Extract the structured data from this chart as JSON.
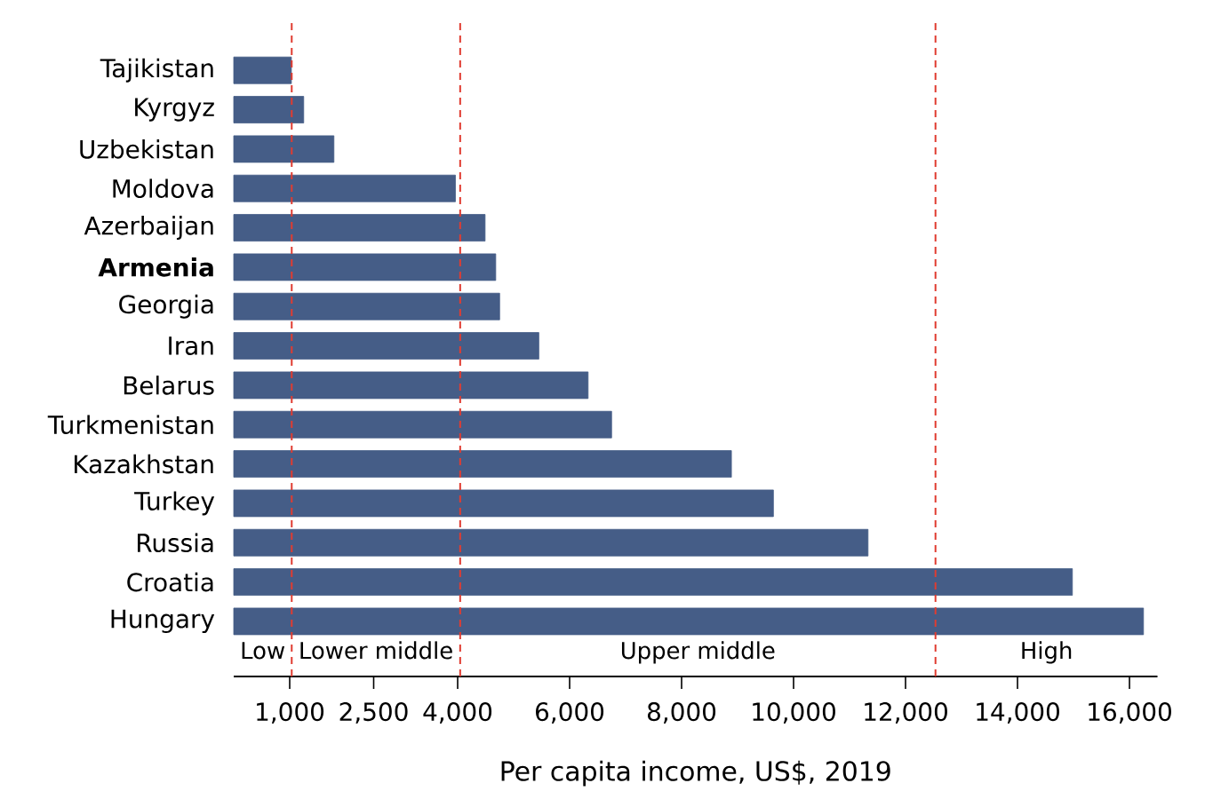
{
  "chart_data": {
    "type": "bar",
    "orientation": "horizontal",
    "xlabel": "Per capita income, US$, 2019",
    "categories": [
      "Tajikistan",
      "Kyrgyz",
      "Uzbekistan",
      "Moldova",
      "Azerbaijan",
      "**Armenia**",
      "Georgia",
      "Iran",
      "Belarus",
      "Turkmenistan",
      "Kazakhstan",
      "Turkey",
      "Russia",
      "Croatia",
      "Hungary"
    ],
    "values": [
      1030,
      1250,
      1790,
      3960,
      4490,
      4680,
      4750,
      5450,
      6330,
      6750,
      8890,
      9640,
      11330,
      14980,
      16250
    ],
    "color": "#455d87",
    "xlim": [
      0,
      16500
    ],
    "xticks": [
      {
        "value": 1000,
        "label": "1,000"
      },
      {
        "value": 2500,
        "label": "2,500"
      },
      {
        "value": 4000,
        "label": "4,000"
      },
      {
        "value": 6000,
        "label": "6,000"
      },
      {
        "value": 8000,
        "label": "8,000"
      },
      {
        "value": 10000,
        "label": "10,000"
      },
      {
        "value": 12000,
        "label": "12,000"
      },
      {
        "value": 14000,
        "label": "14,000"
      },
      {
        "value": 16000,
        "label": "16,000"
      }
    ],
    "ref_lines": [
      {
        "axis": "x",
        "value": 1036,
        "color": "#e03c31",
        "line_style": "dashed"
      },
      {
        "axis": "x",
        "value": 4045,
        "color": "#e03c31",
        "line_style": "dashed"
      },
      {
        "axis": "x",
        "value": 12535,
        "color": "#e03c31",
        "line_style": "dashed"
      }
    ],
    "annotations": [
      "Low",
      "Lower middle",
      "Upper middle",
      "High"
    ],
    "grid": false
  }
}
